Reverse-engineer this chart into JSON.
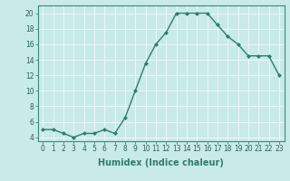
{
  "x": [
    0,
    1,
    2,
    3,
    4,
    5,
    6,
    7,
    8,
    9,
    10,
    11,
    12,
    13,
    14,
    15,
    16,
    17,
    18,
    19,
    20,
    21,
    22,
    23
  ],
  "y": [
    5,
    5,
    4.5,
    4,
    4.5,
    4.5,
    5,
    4.5,
    6.5,
    10,
    13.5,
    16,
    17.5,
    20,
    20,
    20,
    20,
    18.5,
    17,
    16,
    14.5,
    14.5,
    14.5,
    12
  ],
  "xlabel": "Humidex (Indice chaleur)",
  "ylim": [
    3.5,
    21
  ],
  "xlim": [
    -0.5,
    23.5
  ],
  "line_color": "#2e7d6e",
  "marker": "D",
  "marker_size": 2,
  "bg_color": "#c8eae8",
  "grid_color": "#e8f8f8",
  "yticks": [
    4,
    6,
    8,
    10,
    12,
    14,
    16,
    18,
    20
  ],
  "xticks": [
    0,
    1,
    2,
    3,
    4,
    5,
    6,
    7,
    8,
    9,
    10,
    11,
    12,
    13,
    14,
    15,
    16,
    17,
    18,
    19,
    20,
    21,
    22,
    23
  ],
  "tick_fontsize": 5.5,
  "xlabel_fontsize": 7
}
